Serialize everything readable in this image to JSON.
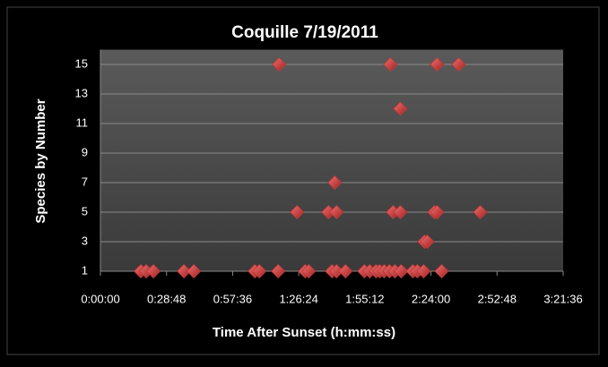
{
  "chart_data": {
    "type": "scatter",
    "title": "Coquille 7/19/2011",
    "x_label": "Time After Sunset (h:mm:ss)",
    "y_label": "Species by Number",
    "color": "#c0393b",
    "grid": true,
    "x": [
      1056,
      1197,
      1385,
      2183,
      2441,
      4037,
      4154,
      4647,
      5351,
      5445,
      6055,
      6173,
      6407,
      6900,
      7041,
      7205,
      7299,
      7417,
      7557,
      7698,
      7862,
      8168,
      8285,
      8449,
      8919,
      4671,
      7581,
      8801,
      9365,
      7839,
      6126,
      5140,
      5961,
      6173,
      7651,
      7839,
      8731,
      8801,
      9928,
      8473,
      8543
    ],
    "values": [
      1,
      1,
      1,
      1,
      1,
      1,
      1,
      1,
      1,
      1,
      1,
      1,
      1,
      1,
      1,
      1,
      1,
      1,
      1,
      1,
      1,
      1,
      1,
      1,
      1,
      15,
      15,
      15,
      15,
      12,
      7,
      5,
      5,
      5,
      5,
      5,
      5,
      5,
      5,
      3,
      3
    ],
    "xlim": [
      0,
      12096
    ],
    "xticks": [
      {
        "value": 0,
        "label": "0:00:00"
      },
      {
        "value": 1728,
        "label": "0:28:48"
      },
      {
        "value": 3456,
        "label": "0:57:36"
      },
      {
        "value": 5184,
        "label": "1:26:24"
      },
      {
        "value": 6912,
        "label": "1:55:12"
      },
      {
        "value": 8640,
        "label": "2:24:00"
      },
      {
        "value": 10368,
        "label": "2:52:48"
      },
      {
        "value": 12096,
        "label": "3:21:36"
      }
    ],
    "ylim": [
      1,
      16
    ],
    "yticks": [
      1,
      3,
      5,
      7,
      9,
      11,
      13,
      15
    ]
  }
}
